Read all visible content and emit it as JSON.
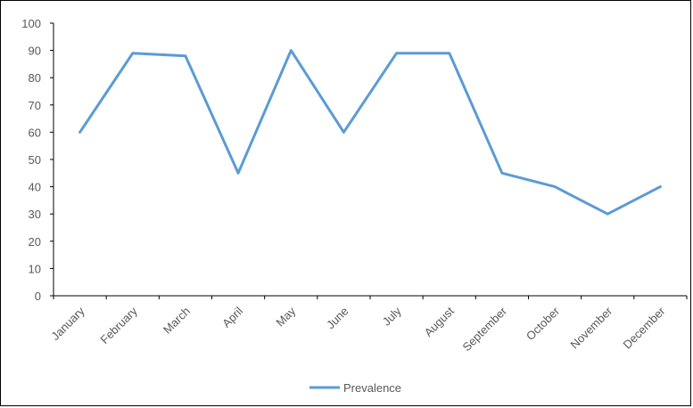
{
  "chart_data": {
    "type": "line",
    "title": "",
    "xlabel": "",
    "ylabel": "",
    "ylim": [
      0,
      100
    ],
    "yticks": [
      0,
      10,
      20,
      30,
      40,
      50,
      60,
      70,
      80,
      90,
      100
    ],
    "grid": false,
    "legend_position": "bottom",
    "categories": [
      "January",
      "February",
      "March",
      "April",
      "May",
      "June",
      "July",
      "August",
      "September",
      "October",
      "November",
      "December"
    ],
    "series": [
      {
        "name": "Prevalence",
        "color": "#5b9bd5",
        "values": [
          60,
          89,
          88,
          45,
          90,
          60,
          89,
          89,
          45,
          40,
          30,
          40
        ]
      }
    ]
  }
}
